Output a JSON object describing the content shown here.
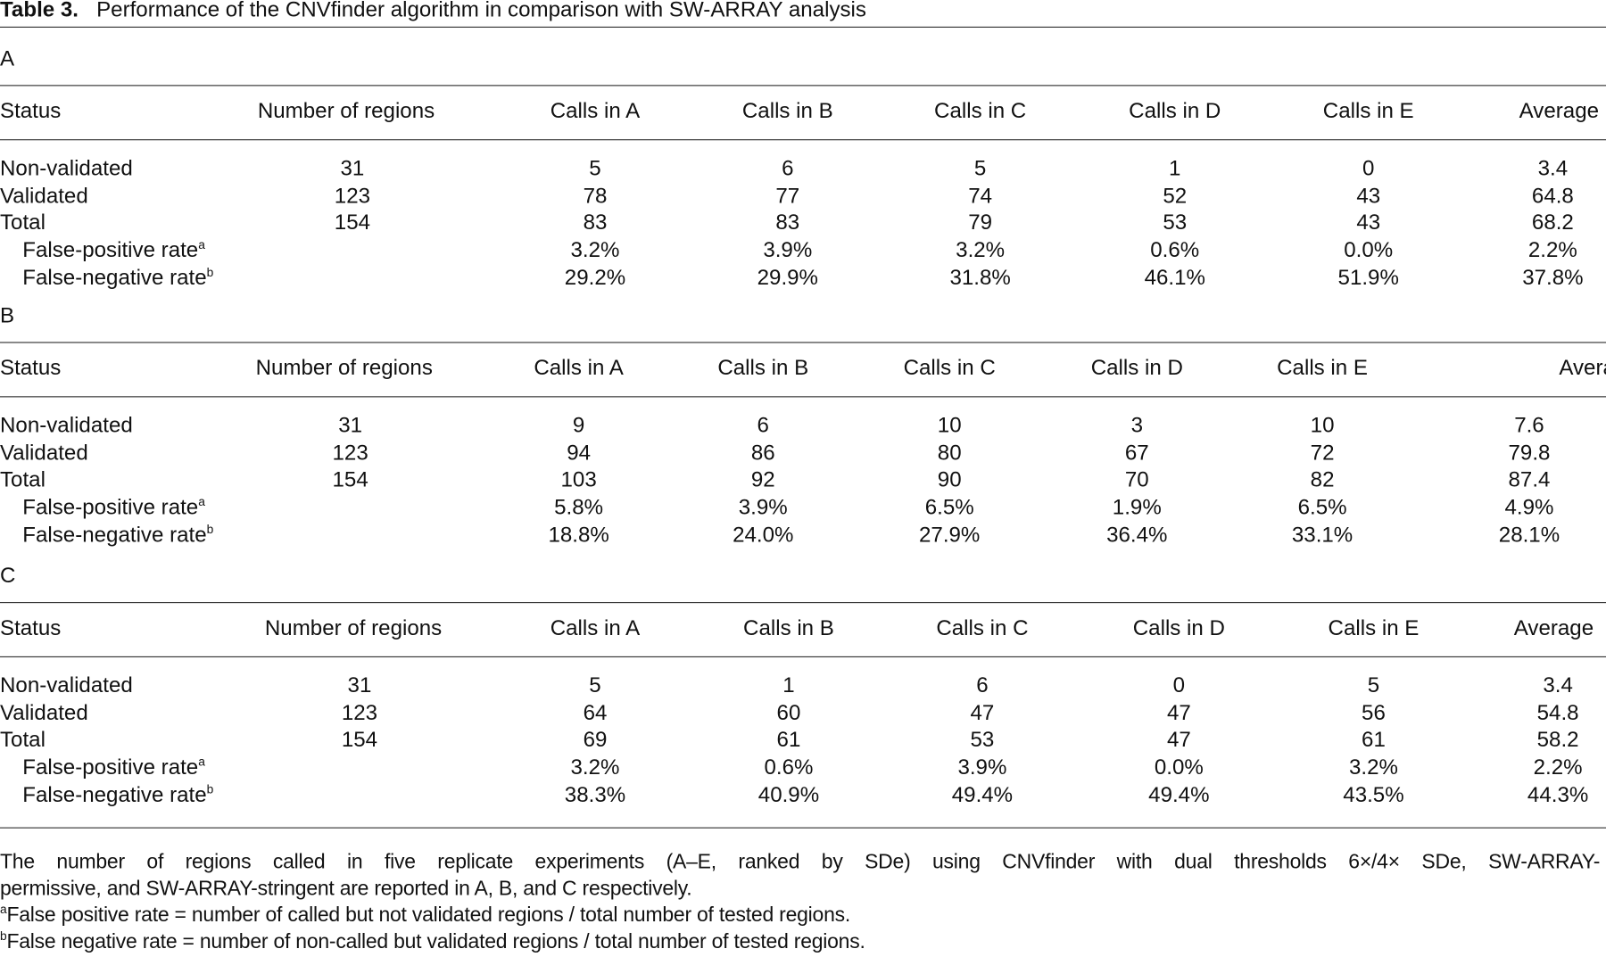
{
  "title": {
    "label": "Table 3.",
    "text": "Performance of the CNVfinder algorithm in comparison with SW-ARRAY analysis"
  },
  "sections": [
    {
      "label": "A",
      "headers": [
        "Status",
        "Number of regions",
        "Calls in A",
        "Calls in B",
        "Calls in C",
        "Calls in D",
        "Calls in E",
        "Average"
      ],
      "rows": [
        {
          "status": "Non-validated",
          "sup": "",
          "values": [
            "31",
            "5",
            "6",
            "5",
            "1",
            "0",
            "3.4"
          ]
        },
        {
          "status": "Validated",
          "sup": "",
          "values": [
            "123",
            "78",
            "77",
            "74",
            "52",
            "43",
            "64.8"
          ]
        },
        {
          "status": "Total",
          "sup": "",
          "values": [
            "154",
            "83",
            "83",
            "79",
            "53",
            "43",
            "68.2"
          ]
        },
        {
          "status": "False-positive rate",
          "sup": "a",
          "values": [
            "",
            "3.2%",
            "3.9%",
            "3.2%",
            "0.6%",
            "0.0%",
            "2.2%"
          ]
        },
        {
          "status": "False-negative rate",
          "sup": "b",
          "values": [
            "",
            "29.2%",
            "29.9%",
            "31.8%",
            "46.1%",
            "51.9%",
            "37.8%"
          ]
        }
      ]
    },
    {
      "label": "B",
      "headers": [
        "Status",
        "Number of regions",
        "Calls in A",
        "Calls in B",
        "Calls in C",
        "Calls in D",
        "Calls in E",
        "Average"
      ],
      "rows": [
        {
          "status": "Non-validated",
          "sup": "",
          "values": [
            "31",
            "9",
            "6",
            "10",
            "3",
            "10",
            "7.6"
          ]
        },
        {
          "status": "Validated",
          "sup": "",
          "values": [
            "123",
            "94",
            "86",
            "80",
            "67",
            "72",
            "79.8"
          ]
        },
        {
          "status": "Total",
          "sup": "",
          "values": [
            "154",
            "103",
            "92",
            "90",
            "70",
            "82",
            "87.4"
          ]
        },
        {
          "status": "False-positive rate",
          "sup": "a",
          "values": [
            "",
            "5.8%",
            "3.9%",
            "6.5%",
            "1.9%",
            "6.5%",
            "4.9%"
          ]
        },
        {
          "status": "False-negative rate",
          "sup": "b",
          "values": [
            "",
            "18.8%",
            "24.0%",
            "27.9%",
            "36.4%",
            "33.1%",
            "28.1%"
          ]
        }
      ]
    },
    {
      "label": "C",
      "headers": [
        "Status",
        "Number of regions",
        "Calls in A",
        "Calls in B",
        "Calls in C",
        "Calls in D",
        "Calls in E",
        "Average"
      ],
      "rows": [
        {
          "status": "Non-validated",
          "sup": "",
          "values": [
            "31",
            "5",
            "1",
            "6",
            "0",
            "5",
            "3.4"
          ]
        },
        {
          "status": "Validated",
          "sup": "",
          "values": [
            "123",
            "64",
            "60",
            "47",
            "47",
            "56",
            "54.8"
          ]
        },
        {
          "status": "Total",
          "sup": "",
          "values": [
            "154",
            "69",
            "61",
            "53",
            "47",
            "61",
            "58.2"
          ]
        },
        {
          "status": "False-positive rate",
          "sup": "a",
          "values": [
            "",
            "3.2%",
            "0.6%",
            "3.9%",
            "0.0%",
            "3.2%",
            "2.2%"
          ]
        },
        {
          "status": "False-negative rate",
          "sup": "b",
          "values": [
            "",
            "38.3%",
            "40.9%",
            "49.4%",
            "49.4%",
            "43.5%",
            "44.3%"
          ]
        }
      ]
    }
  ],
  "footnotes": {
    "caption_line1": "The number of regions called in five replicate experiments (A–E, ranked by SDe) using CNVfinder with dual thresholds 6×/4× SDe, SW-ARRAY-",
    "caption_line2": "permissive, and SW-ARRAY-stringent are reported in A, B, and C respectively.",
    "a_mark": "a",
    "a_text": "False positive rate = number of called but not validated regions / total number of tested regions.",
    "b_mark": "b",
    "b_text": "False negative rate = number of non-called but validated regions / total number of tested regions."
  }
}
